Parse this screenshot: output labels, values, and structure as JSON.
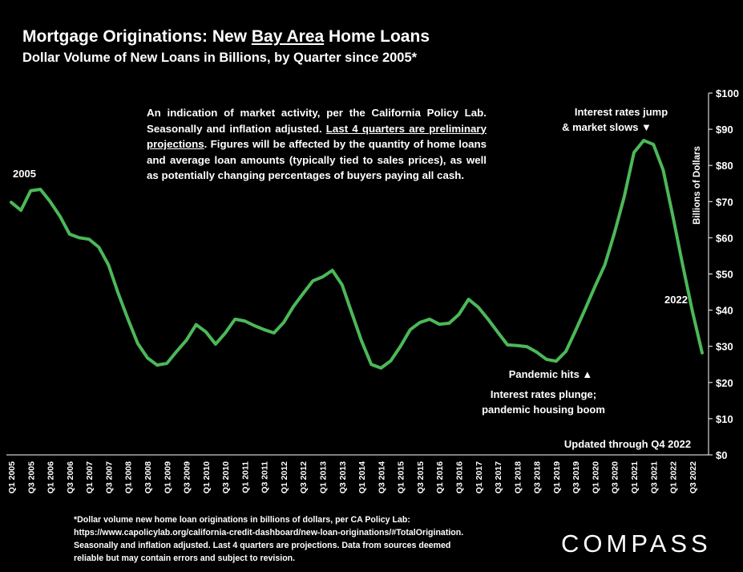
{
  "chart_data": {
    "type": "line",
    "title": [
      {
        "text": "Mortgage Originations: New "
      },
      {
        "text": "Bay Area",
        "underline": true
      },
      {
        "text": " Home Loans"
      }
    ],
    "subtitle": "Dollar Volume of New Loans in Billions, by Quarter since 2005*",
    "y_axis_label": "Billions of Dollars",
    "note": [
      {
        "text": "An indication of market activity, per the California Policy Lab. Seasonally and inflation adjusted. "
      },
      {
        "text": "Last 4 quarters are preliminary projections",
        "underline": true
      },
      {
        "text": ". Figures will be affected by the quantity of home loans and average loan amounts (typically tied to sales prices), as well as potentially changing percentages of buyers paying all cash."
      }
    ],
    "annotations": [
      [
        "2005"
      ],
      [
        "2022"
      ],
      [
        "Interest rates jump",
        "& market slows ▼"
      ],
      [
        "Pandemic hits ▲"
      ],
      [
        "Interest rates plunge;",
        "pandemic housing boom"
      ],
      [
        "Updated through Q4 2022"
      ]
    ],
    "categories": [
      "Q1 2005",
      null,
      "Q3 2005",
      null,
      "Q1 2006",
      null,
      "Q3 2006",
      null,
      "Q1 2007",
      null,
      "Q3 2007",
      null,
      "Q1 2008",
      null,
      "Q3 2008",
      null,
      "Q1 2009",
      null,
      "Q3 2009",
      null,
      "Q1 2010",
      null,
      "Q3 2010",
      null,
      "Q1 2011",
      null,
      "Q3 2011",
      null,
      "Q1 2012",
      null,
      "Q3 2012",
      null,
      "Q1 2013",
      null,
      "Q3 2013",
      null,
      "Q1 2014",
      null,
      "Q3 2014",
      null,
      "Q1 2015",
      null,
      "Q3 2015",
      null,
      "Q1 2016",
      null,
      "Q3 2016",
      null,
      "Q1 2017",
      null,
      "Q3 2017",
      null,
      "Q1 2018",
      null,
      "Q3 2018",
      null,
      "Q1 2019",
      null,
      "Q3 2019",
      null,
      "Q1 2020",
      null,
      "Q3 2020",
      null,
      "Q1 2021",
      null,
      "Q3 2021",
      null,
      "Q1 2022",
      null,
      "Q3 2022",
      null
    ],
    "values": [
      69.8,
      67.6,
      73,
      73.4,
      70,
      66,
      61,
      60,
      59.6,
      57.4,
      52.5,
      44.6,
      37.5,
      30.8,
      26.8,
      24.8,
      25.3,
      28.6,
      31.7,
      36,
      34,
      30.6,
      33.7,
      37.5,
      37,
      35.7,
      34.6,
      33.7,
      36.6,
      41,
      44.6,
      48.1,
      49.2,
      51,
      47,
      39.2,
      31.5,
      25,
      24,
      26,
      30,
      34.6,
      36.6,
      37.5,
      36.1,
      36.4,
      38.8,
      43,
      40.8,
      37.5,
      33.9,
      30.4,
      30.2,
      29.9,
      28.4,
      26.4,
      25.9,
      28.6,
      34.4,
      40.4,
      46.6,
      52.5,
      61.4,
      71.4,
      83.6,
      86.9,
      85.8,
      78.7,
      65.9,
      52.5,
      39.7,
      28.2
    ],
    "color": "#4cb858",
    "ylim": [
      0,
      100
    ],
    "yticks": [
      {
        "value": 0,
        "label": "$0"
      },
      {
        "value": 10,
        "label": "$10"
      },
      {
        "value": 20,
        "label": "$20"
      },
      {
        "value": 30,
        "label": "$30"
      },
      {
        "value": 40,
        "label": "$40"
      },
      {
        "value": 50,
        "label": "$50"
      },
      {
        "value": 60,
        "label": "$60"
      },
      {
        "value": 70,
        "label": "$70"
      },
      {
        "value": 80,
        "label": "$80"
      },
      {
        "value": 90,
        "label": "$90"
      },
      {
        "value": 100,
        "label": "$100"
      }
    ],
    "y_axis_side": "right",
    "grid": false
  },
  "footnote": [
    "*Dollar volume new home loan originations in billions of dollars, per CA Policy Lab:",
    "https://www.capolicylab.org/california-credit-dashboard/new-loan-originations/#TotalOrigination.",
    "Seasonally and inflation adjusted. Last 4 quarters are projections. Data from sources deemed",
    "reliable but may contain errors and subject to revision."
  ],
  "logo": "COMPASS"
}
